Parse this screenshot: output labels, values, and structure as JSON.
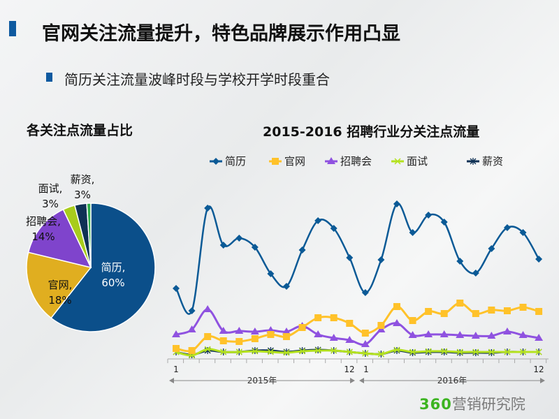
{
  "slide": {
    "title": "官网关注流量提升，特色品牌展示作用凸显",
    "bullet": "简历关注流量波峰时段与学校开学时段重合",
    "logo_brand": "360",
    "logo_text": "营销研究院",
    "accent": "#0e5aa0"
  },
  "chart_data": [
    {
      "type": "pie",
      "title": "各关注点流量占比",
      "slices": [
        {
          "label": "简历, 60%",
          "name": "简历",
          "value": 60,
          "color": "#0b4f8a"
        },
        {
          "label": "官网, 18%",
          "name": "官网",
          "value": 18,
          "color": "#e0ae20"
        },
        {
          "label": "招聘会, 14%",
          "name": "招聘会",
          "value": 14,
          "color": "#7f44cc"
        },
        {
          "label": "面试, 3%",
          "name": "面试",
          "value": 3,
          "color": "#a8cc1c"
        },
        {
          "label": "薪资, 3%",
          "name": "薪资",
          "value": 3,
          "color": "#0f3155"
        },
        {
          "label": "",
          "name": "",
          "value": 1,
          "color": "#2fae4a"
        }
      ]
    },
    {
      "type": "line",
      "title": "2015-2016 招聘行业分关注点流量",
      "legend": "top",
      "x_tick_labels": [
        "1",
        "12",
        "1",
        "12"
      ],
      "groups": [
        "2015年",
        "2016年"
      ],
      "x": [
        "2015-01",
        "2015-02",
        "2015-03",
        "2015-04",
        "2015-05",
        "2015-06",
        "2015-07",
        "2015-08",
        "2015-09",
        "2015-10",
        "2015-11",
        "2015-12",
        "2016-01",
        "2016-02",
        "2016-03",
        "2016-04",
        "2016-05",
        "2016-06",
        "2016-07",
        "2016-08",
        "2016-09",
        "2016-10",
        "2016-11",
        "2016-12"
      ],
      "series": [
        {
          "name": "简历",
          "color": "#0b5a96",
          "marker": "diamond",
          "values": [
            99,
            67,
            214,
            161,
            171,
            158,
            120,
            102,
            154,
            196,
            185,
            143,
            93,
            140,
            220,
            179,
            204,
            194,
            138,
            121,
            156,
            186,
            179,
            141
          ]
        },
        {
          "name": "官网",
          "color": "#ffc22a",
          "marker": "square",
          "values": [
            13,
            10,
            30,
            24,
            23,
            27,
            33,
            30,
            43,
            57,
            57,
            49,
            35,
            46,
            73,
            53,
            66,
            63,
            78,
            63,
            68,
            67,
            72,
            66
          ]
        },
        {
          "name": "招聘会",
          "color": "#8f52e0",
          "marker": "triangle",
          "values": [
            33,
            40,
            69,
            38,
            38,
            37,
            39,
            37,
            45,
            33,
            28,
            25,
            19,
            40,
            49,
            32,
            33,
            33,
            32,
            31,
            31,
            37,
            32,
            28
          ]
        },
        {
          "name": "面试",
          "color": "#b4e21e",
          "marker": "x",
          "values": [
            8,
            3,
            12,
            8,
            8,
            9,
            8,
            7,
            9,
            10,
            10,
            8,
            6,
            5,
            11,
            8,
            9,
            9,
            8,
            8,
            8,
            8,
            8,
            8
          ]
        },
        {
          "name": "薪资",
          "color": "#0f3155",
          "marker": "star",
          "values": [
            8,
            4,
            10,
            8,
            8,
            10,
            10,
            8,
            10,
            11,
            10,
            8,
            6,
            5,
            10,
            7,
            8,
            8,
            7,
            7,
            7,
            8,
            8,
            8
          ]
        }
      ]
    }
  ]
}
